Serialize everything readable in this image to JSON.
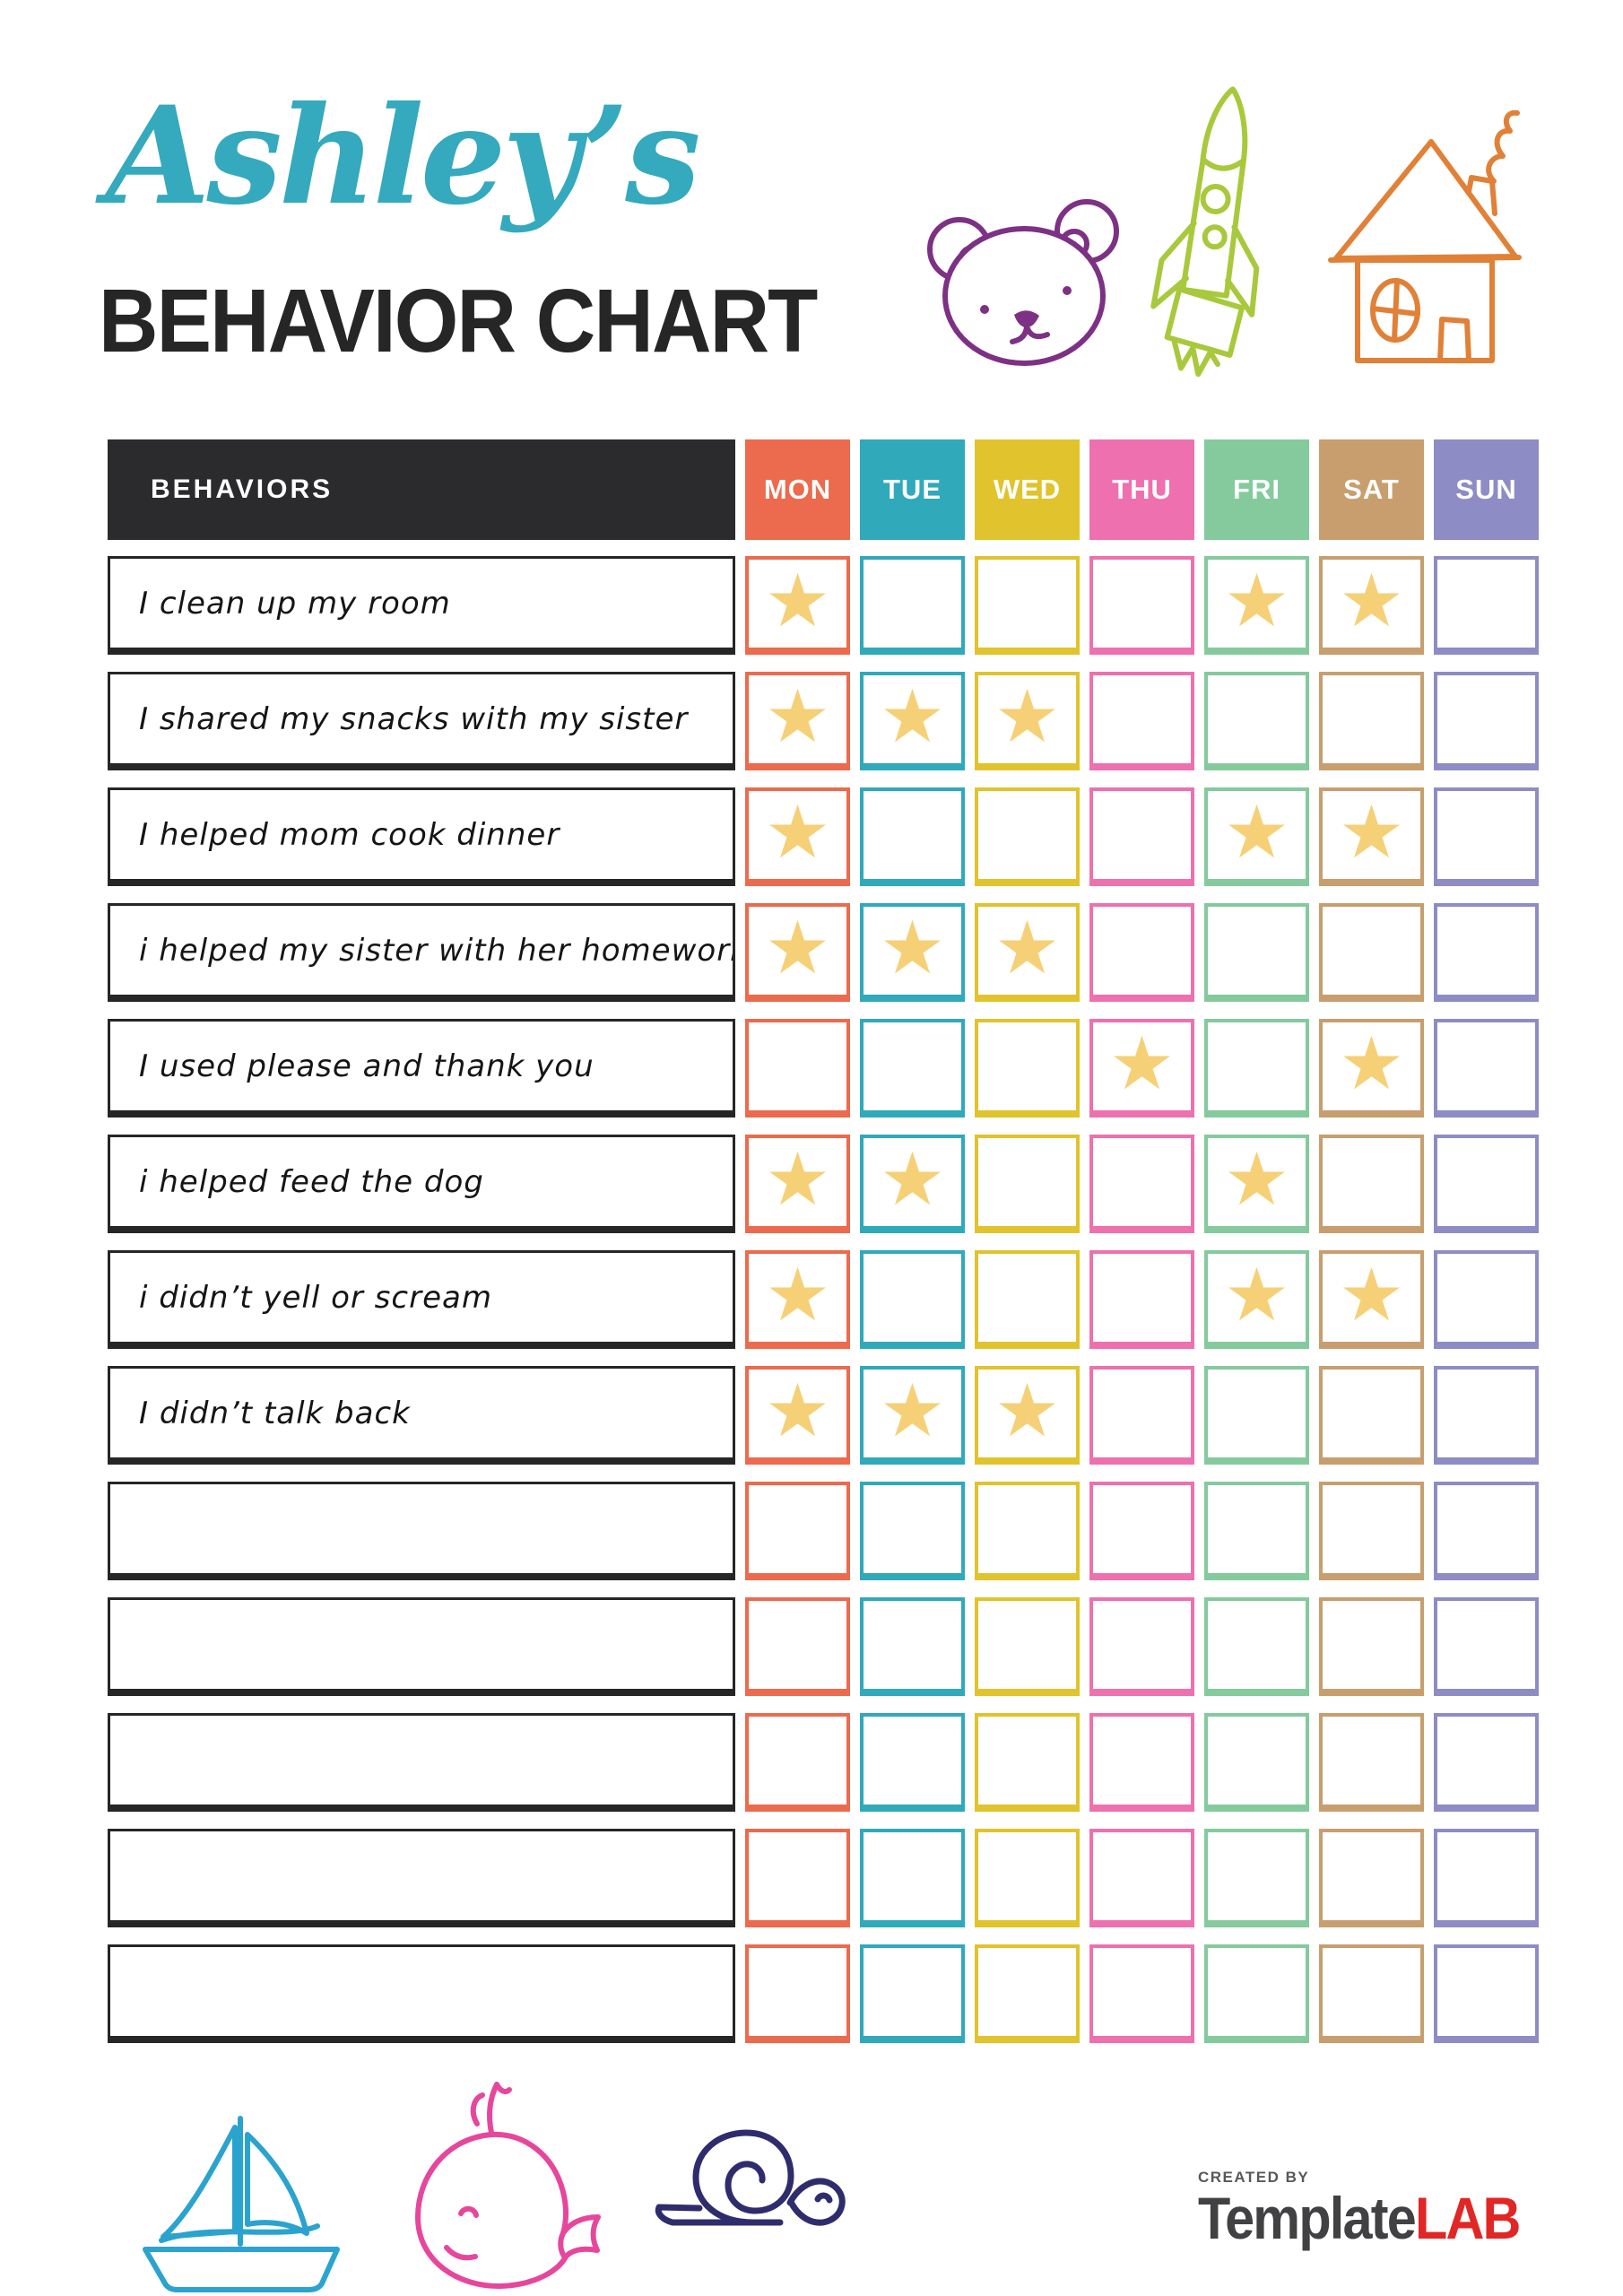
{
  "header": {
    "kid_name": "Ashley’s",
    "kid_name_color": "#35a9bd",
    "title": "BEHAVIOR CHART",
    "title_color": "#262626"
  },
  "doodles": {
    "top": [
      "bear",
      "rocket",
      "house"
    ],
    "bottom": [
      "sailboat",
      "whale",
      "snail"
    ],
    "colors": {
      "bear": "#7d3184",
      "rocket": "#a8c93c",
      "house": "#e08137",
      "sailboat": "#2ba3cf",
      "whale": "#e6479d",
      "snail": "#2f2c6e"
    }
  },
  "table": {
    "behaviors_header": "BEHAVIORS",
    "behaviors_header_bg": "#2b2b2d",
    "star_color": "#f6d077",
    "days": [
      {
        "label": "MON",
        "color": "#ec6a4d"
      },
      {
        "label": "TUE",
        "color": "#30a9ba"
      },
      {
        "label": "WED",
        "color": "#e0c32d"
      },
      {
        "label": "THU",
        "color": "#ee70ae"
      },
      {
        "label": "FRI",
        "color": "#84ca9d"
      },
      {
        "label": "SAT",
        "color": "#c89e6e"
      },
      {
        "label": "SUN",
        "color": "#8e8cc4"
      }
    ],
    "rows": [
      {
        "behavior": "I clean up my room",
        "stars": [
          "MON",
          "FRI",
          "SAT"
        ]
      },
      {
        "behavior": "I shared my snacks with my sister",
        "stars": [
          "MON",
          "TUE",
          "WED"
        ]
      },
      {
        "behavior": "I helped mom cook dinner",
        "stars": [
          "MON",
          "FRI",
          "SAT"
        ]
      },
      {
        "behavior": "i helped my sister with her homework",
        "stars": [
          "MON",
          "TUE",
          "WED"
        ]
      },
      {
        "behavior": "I used please and thank you",
        "stars": [
          "THU",
          "SAT"
        ]
      },
      {
        "behavior": "i helped feed the dog",
        "stars": [
          "MON",
          "TUE",
          "FRI"
        ]
      },
      {
        "behavior": "i didn’t yell or scream",
        "stars": [
          "MON",
          "FRI",
          "SAT"
        ]
      },
      {
        "behavior": "I didn’t talk back",
        "stars": [
          "MON",
          "TUE",
          "WED"
        ]
      },
      {
        "behavior": "",
        "stars": []
      },
      {
        "behavior": "",
        "stars": []
      },
      {
        "behavior": "",
        "stars": []
      },
      {
        "behavior": "",
        "stars": []
      },
      {
        "behavior": "",
        "stars": []
      }
    ]
  },
  "footer": {
    "created_by": "CREATED BY",
    "brand_primary": "Template",
    "brand_primary_color": "#414042",
    "brand_accent": "LAB",
    "brand_accent_color": "#e12726"
  }
}
